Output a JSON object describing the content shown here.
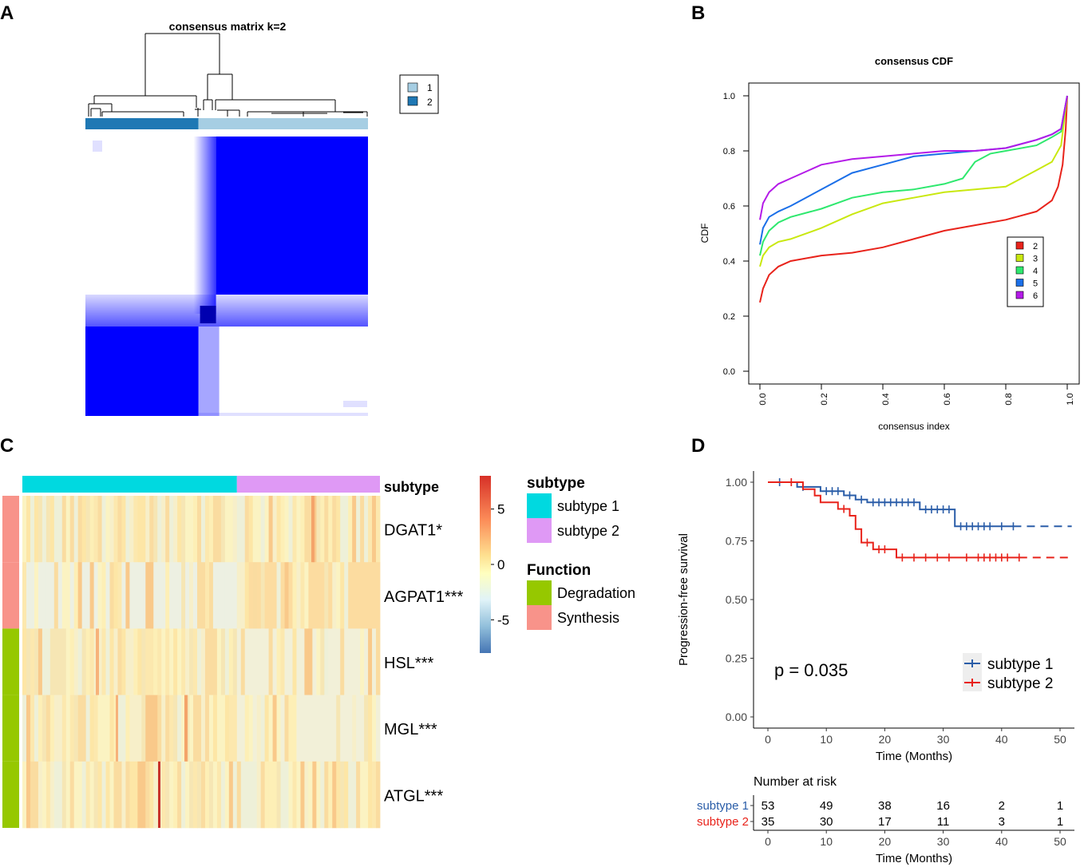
{
  "chart_data": [
    {
      "panel": "A",
      "type": "heatmap",
      "title": "consensus matrix k=2",
      "legend": {
        "position": "right",
        "entries": [
          {
            "label": "1",
            "color": "#a6cee3"
          },
          {
            "label": "2",
            "color": "#1f78b4"
          }
        ]
      },
      "clusters": [
        {
          "label": "2",
          "share": 0.4,
          "color": "#1f78b4"
        },
        {
          "label": "1",
          "share": 0.6,
          "color": "#a6cee3"
        }
      ],
      "matrix_color": "#0000ff"
    },
    {
      "panel": "B",
      "type": "line",
      "title": "consensus CDF",
      "xlabel": "consensus index",
      "ylabel": "CDF",
      "xlim": [
        0,
        1
      ],
      "ylim": [
        0,
        1
      ],
      "xticks": [
        "0.0",
        "0.2",
        "0.4",
        "0.6",
        "0.8",
        "1.0"
      ],
      "yticks": [
        "0.0",
        "0.2",
        "0.4",
        "0.6",
        "0.8",
        "1.0"
      ],
      "legend_position": "bottom-right",
      "series": [
        {
          "name": "2",
          "color": "#e8231b",
          "points": [
            [
              0,
              0.25
            ],
            [
              0.01,
              0.3
            ],
            [
              0.03,
              0.35
            ],
            [
              0.06,
              0.38
            ],
            [
              0.1,
              0.4
            ],
            [
              0.2,
              0.42
            ],
            [
              0.3,
              0.43
            ],
            [
              0.4,
              0.45
            ],
            [
              0.5,
              0.48
            ],
            [
              0.6,
              0.51
            ],
            [
              0.7,
              0.53
            ],
            [
              0.8,
              0.55
            ],
            [
              0.9,
              0.58
            ],
            [
              0.95,
              0.62
            ],
            [
              0.97,
              0.67
            ],
            [
              0.985,
              0.75
            ],
            [
              0.995,
              0.88
            ],
            [
              1.0,
              1.0
            ]
          ]
        },
        {
          "name": "3",
          "color": "#c9e80f",
          "points": [
            [
              0,
              0.38
            ],
            [
              0.01,
              0.42
            ],
            [
              0.03,
              0.45
            ],
            [
              0.06,
              0.47
            ],
            [
              0.1,
              0.48
            ],
            [
              0.2,
              0.52
            ],
            [
              0.3,
              0.57
            ],
            [
              0.4,
              0.61
            ],
            [
              0.5,
              0.63
            ],
            [
              0.6,
              0.65
            ],
            [
              0.7,
              0.66
            ],
            [
              0.8,
              0.67
            ],
            [
              0.85,
              0.7
            ],
            [
              0.9,
              0.73
            ],
            [
              0.95,
              0.76
            ],
            [
              0.98,
              0.82
            ],
            [
              1.0,
              1.0
            ]
          ]
        },
        {
          "name": "4",
          "color": "#2ee86e",
          "points": [
            [
              0,
              0.42
            ],
            [
              0.01,
              0.47
            ],
            [
              0.03,
              0.51
            ],
            [
              0.06,
              0.54
            ],
            [
              0.1,
              0.56
            ],
            [
              0.2,
              0.59
            ],
            [
              0.3,
              0.63
            ],
            [
              0.4,
              0.65
            ],
            [
              0.5,
              0.66
            ],
            [
              0.6,
              0.68
            ],
            [
              0.66,
              0.7
            ],
            [
              0.7,
              0.76
            ],
            [
              0.75,
              0.79
            ],
            [
              0.8,
              0.8
            ],
            [
              0.9,
              0.82
            ],
            [
              0.95,
              0.85
            ],
            [
              0.98,
              0.87
            ],
            [
              1.0,
              1.0
            ]
          ]
        },
        {
          "name": "5",
          "color": "#1b6fe8",
          "points": [
            [
              0,
              0.46
            ],
            [
              0.01,
              0.52
            ],
            [
              0.03,
              0.56
            ],
            [
              0.06,
              0.58
            ],
            [
              0.1,
              0.6
            ],
            [
              0.2,
              0.66
            ],
            [
              0.3,
              0.72
            ],
            [
              0.4,
              0.75
            ],
            [
              0.5,
              0.78
            ],
            [
              0.6,
              0.79
            ],
            [
              0.7,
              0.8
            ],
            [
              0.8,
              0.81
            ],
            [
              0.9,
              0.84
            ],
            [
              0.95,
              0.86
            ],
            [
              0.98,
              0.88
            ],
            [
              1.0,
              1.0
            ]
          ]
        },
        {
          "name": "6",
          "color": "#b41be8",
          "points": [
            [
              0,
              0.55
            ],
            [
              0.01,
              0.61
            ],
            [
              0.03,
              0.65
            ],
            [
              0.06,
              0.68
            ],
            [
              0.1,
              0.7
            ],
            [
              0.2,
              0.75
            ],
            [
              0.3,
              0.77
            ],
            [
              0.4,
              0.78
            ],
            [
              0.5,
              0.79
            ],
            [
              0.6,
              0.8
            ],
            [
              0.7,
              0.8
            ],
            [
              0.8,
              0.81
            ],
            [
              0.9,
              0.84
            ],
            [
              0.95,
              0.86
            ],
            [
              0.98,
              0.88
            ],
            [
              1.0,
              1.0
            ]
          ]
        }
      ]
    },
    {
      "panel": "C",
      "type": "heatmap",
      "rows": [
        "DGAT1*",
        "AGPAT1***",
        "HSL***",
        "MGL***",
        "ATGL***"
      ],
      "row_function": [
        "Synthesis",
        "Synthesis",
        "Degradation",
        "Degradation",
        "Degradation"
      ],
      "column_annotation_title": "subtype",
      "subtype_split": 0.6,
      "colorbar": {
        "ticks": [
          "5",
          "0",
          "-5"
        ],
        "values": [
          5,
          0,
          -5
        ],
        "range": [
          -8,
          8
        ]
      },
      "legends": [
        {
          "title": "subtype",
          "items": [
            {
              "label": "subtype 1",
              "color": "#00d9e0"
            },
            {
              "label": "subtype 2",
              "color": "#df99f5"
            }
          ]
        },
        {
          "title": "Function",
          "items": [
            {
              "label": "Degradation",
              "color": "#96c800"
            },
            {
              "label": "Synthesis",
              "color": "#f8938a"
            }
          ]
        }
      ]
    },
    {
      "panel": "D",
      "type": "line",
      "subtype": "kaplan-meier",
      "xlabel": "Time (Months)",
      "ylabel": "Progression-free survival",
      "xlim": [
        -2,
        52
      ],
      "ylim": [
        0,
        1
      ],
      "xticks": [
        "0",
        "10",
        "20",
        "30",
        "40",
        "50"
      ],
      "yticks": [
        "0.00",
        "0.25",
        "0.50",
        "0.75",
        "1.00"
      ],
      "annotation": "p = 0.035",
      "legend_position": "bottom-right",
      "series": [
        {
          "name": "subtype 1",
          "color": "#2a5da8",
          "steps": [
            [
              0,
              1.0
            ],
            [
              5,
              0.98
            ],
            [
              9,
              0.962
            ],
            [
              13,
              0.944
            ],
            [
              15,
              0.926
            ],
            [
              17,
              0.914
            ],
            [
              26,
              0.884
            ],
            [
              32,
              0.812
            ]
          ],
          "censor": [
            2,
            4,
            6,
            10,
            11,
            12,
            14,
            16,
            18,
            19,
            20,
            21,
            22,
            23,
            24,
            25,
            27,
            28,
            29,
            30,
            31,
            33,
            34,
            35,
            36,
            37,
            38,
            40,
            42
          ],
          "dashed_from": 42,
          "end": 52
        },
        {
          "name": "subtype 2",
          "color": "#e8231b",
          "steps": [
            [
              0,
              1.0
            ],
            [
              6,
              0.97
            ],
            [
              8,
              0.943
            ],
            [
              9,
              0.914
            ],
            [
              12,
              0.886
            ],
            [
              14,
              0.857
            ],
            [
              15,
              0.8
            ],
            [
              16,
              0.743
            ],
            [
              18,
              0.714
            ],
            [
              22,
              0.679
            ]
          ],
          "censor": [
            4,
            13,
            17,
            19,
            20,
            23,
            25,
            27,
            29,
            31,
            34,
            36,
            37,
            38,
            39,
            40,
            41,
            43
          ],
          "dashed_from": 43,
          "end": 52
        }
      ],
      "risk_table": {
        "title": "Number at risk",
        "times": [
          0,
          10,
          20,
          30,
          40,
          50
        ],
        "rows": [
          {
            "label": "subtype 1",
            "color": "#2a5da8",
            "values": [
              "53",
              "49",
              "38",
              "16",
              "2",
              "1"
            ]
          },
          {
            "label": "subtype 2",
            "color": "#e8231b",
            "values": [
              "35",
              "30",
              "17",
              "11",
              "3",
              "1"
            ]
          }
        ],
        "xlabel": "Time (Months)",
        "xticks": [
          "0",
          "10",
          "20",
          "30",
          "40",
          "50"
        ]
      }
    }
  ],
  "panel_labels": [
    "A",
    "B",
    "C",
    "D"
  ]
}
